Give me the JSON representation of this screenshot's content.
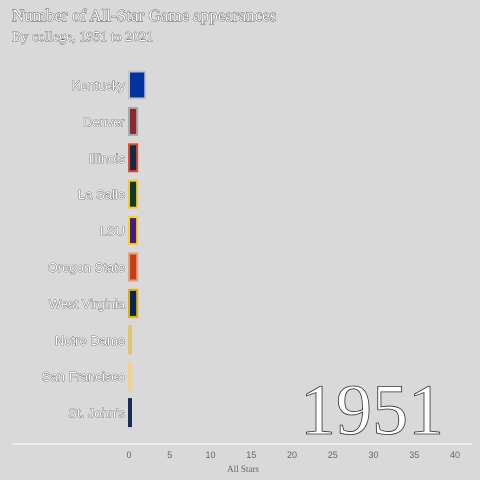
{
  "chart_data": {
    "type": "bar",
    "orientation": "horizontal",
    "title": "Number of All-Star Game appearances",
    "subtitle": "By college, 1951 to 2021",
    "xlabel": "All Stars",
    "ylabel": "",
    "xlim": [
      0,
      40
    ],
    "x_ticks": [
      0,
      5,
      10,
      15,
      20,
      25,
      30,
      35,
      40
    ],
    "grid": false,
    "legend": "none",
    "year": "1951",
    "categories": [
      "Kentucky",
      "Denver",
      "Illinois",
      "La Salle",
      "LSU",
      "Oregon State",
      "West Virginia",
      "Notre Dame",
      "San Francisco",
      "St. John's"
    ],
    "values": [
      2,
      1,
      1,
      1,
      1,
      1,
      1,
      0.1,
      0.1,
      0.1
    ],
    "colors": [
      {
        "fill": "#0033a0",
        "outline": "#c5c5c5"
      },
      {
        "fill": "#8b2a2e",
        "outline": "#a7a9ac"
      },
      {
        "fill": "#13294b",
        "outline": "#e84a27"
      },
      {
        "fill": "#0a3a2a",
        "outline": "#ffc72c"
      },
      {
        "fill": "#461d7c",
        "outline": "#fdd023"
      },
      {
        "fill": "#c73e12",
        "outline": "#e8a07a"
      },
      {
        "fill": "#002855",
        "outline": "#eaaa00"
      },
      {
        "fill": "#c99700",
        "outline": "#e2c46e"
      },
      {
        "fill": "#fdbb30",
        "outline": "#f1d38a"
      },
      {
        "fill": "#1a2a5a",
        "outline": "#1a2a5a"
      }
    ]
  }
}
